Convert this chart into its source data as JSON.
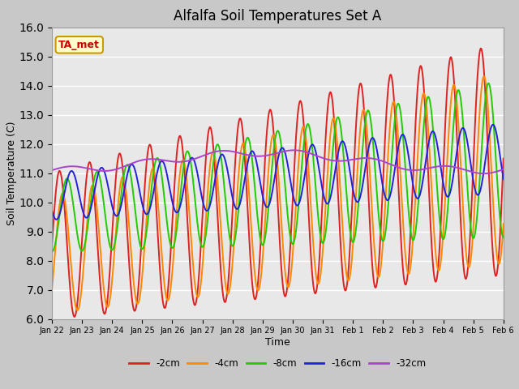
{
  "title": "Alfalfa Soil Temperatures Set A",
  "xlabel": "Time",
  "ylabel": "Soil Temperature (C)",
  "ylim": [
    6.0,
    16.0
  ],
  "yticks": [
    6.0,
    7.0,
    8.0,
    9.0,
    10.0,
    11.0,
    12.0,
    13.0,
    14.0,
    15.0,
    16.0
  ],
  "colors": {
    "-2cm": "#dd2222",
    "-4cm": "#ff8800",
    "-8cm": "#22cc00",
    "-16cm": "#2222dd",
    "-32cm": "#aa44cc"
  },
  "ta_met_label": "TA_met",
  "xtick_labels": [
    "Jan 22",
    "Jan 23",
    "Jan 24",
    "Jan 25",
    "Jan 26",
    "Jan 27",
    "Jan 28",
    "Jan 29",
    "Jan 30",
    "Jan 31",
    "Feb 1",
    "Feb 2",
    "Feb 3",
    "Feb 4",
    "Feb 5",
    "Feb 6"
  ],
  "figsize": [
    6.4,
    4.8
  ],
  "dpi": 100
}
